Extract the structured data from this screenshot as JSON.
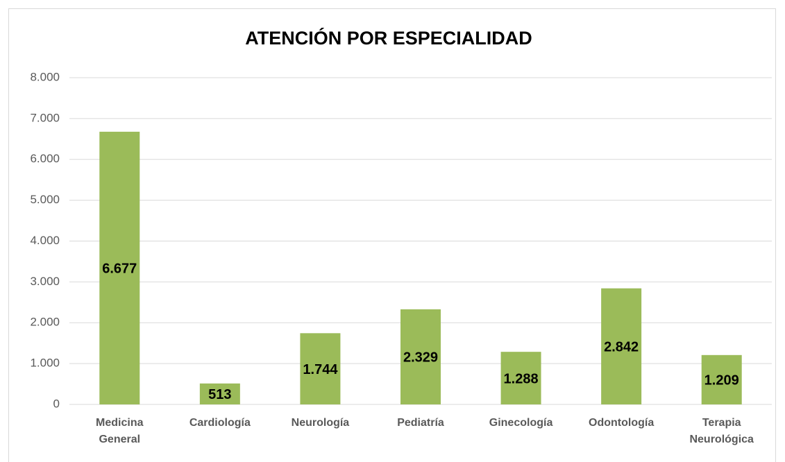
{
  "chart_data": {
    "type": "bar",
    "title": "ATENCIÓN POR ESPECIALIDAD",
    "categories": [
      "Medicina General",
      "Cardiología",
      "Neurología",
      "Pediatría",
      "Ginecología",
      "Odontología",
      "Terapia Neurológica"
    ],
    "values": [
      6677,
      513,
      1744,
      2329,
      1288,
      2842,
      1209
    ],
    "value_labels": [
      "6.677",
      "513",
      "1.744",
      "2.329",
      "1.288",
      "2.842",
      "1.209"
    ],
    "color": "#9bbb59",
    "ylim": [
      0,
      8000
    ],
    "yticks": [
      0,
      {
        "value": 1000,
        "label": "1.000"
      },
      {
        "value": 2000,
        "label": "2.000"
      },
      {
        "value": 3000,
        "label": "3.000"
      },
      {
        "value": 4000,
        "label": "4.000"
      },
      {
        "value": 5000,
        "label": "5.000"
      },
      {
        "value": 6000,
        "label": "6.000"
      },
      {
        "value": 7000,
        "label": "7.000"
      },
      {
        "value": 8000,
        "label": "8.000"
      }
    ],
    "grid": true
  }
}
